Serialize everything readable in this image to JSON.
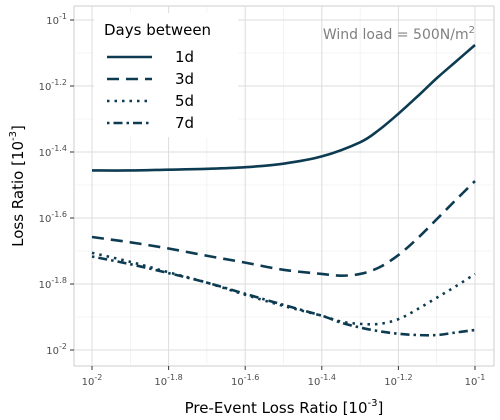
{
  "chart_data": {
    "type": "line",
    "xlabel_main": "Pre-Event Loss Ratio [10",
    "xlabel_sup": "-3",
    "xlabel_close": "]",
    "ylabel_main": "Loss Ratio [10",
    "ylabel_sup": "-3",
    "ylabel_close": "]",
    "x_scale": "log10",
    "y_scale": "log10",
    "xlim": [
      0.01,
      0.1
    ],
    "ylim": [
      0.01,
      0.1
    ],
    "grid": true,
    "x_ticks": [
      {
        "value": 0.01,
        "base": "10",
        "exp": "-2"
      },
      {
        "value": 0.015849,
        "base": "10",
        "exp": "-1.8"
      },
      {
        "value": 0.025119,
        "base": "10",
        "exp": "-1.6"
      },
      {
        "value": 0.039811,
        "base": "10",
        "exp": "-1.4"
      },
      {
        "value": 0.063096,
        "base": "10",
        "exp": "-1.2"
      },
      {
        "value": 0.1,
        "base": "10",
        "exp": "-1"
      }
    ],
    "y_ticks": [
      {
        "value": 0.01,
        "base": "10",
        "exp": "-2"
      },
      {
        "value": 0.015849,
        "base": "10",
        "exp": "-1.8"
      },
      {
        "value": 0.025119,
        "base": "10",
        "exp": "-1.6"
      },
      {
        "value": 0.039811,
        "base": "10",
        "exp": "-1.4"
      },
      {
        "value": 0.063096,
        "base": "10",
        "exp": "-1.2"
      },
      {
        "value": 0.1,
        "base": "10",
        "exp": "-1"
      }
    ],
    "legend": {
      "title": "Days between",
      "position": "top-left"
    },
    "annotation": {
      "main": "Wind load = 500N/m",
      "sup": "2",
      "position": "top-right"
    },
    "line_color": "#0d3b52",
    "series": [
      {
        "name": "1d",
        "dash": "solid",
        "x": [
          0.01,
          0.01259,
          0.01585,
          0.01995,
          0.02512,
          0.03162,
          0.03981,
          0.05012,
          0.05623,
          0.0631,
          0.07079,
          0.07943,
          0.08913,
          0.1
        ],
        "y": [
          0.035,
          0.035,
          0.0352,
          0.0354,
          0.0358,
          0.0367,
          0.0386,
          0.0426,
          0.0465,
          0.052,
          0.0587,
          0.0666,
          0.0748,
          0.084
        ]
      },
      {
        "name": "3d",
        "dash": "dashed",
        "x": [
          0.01,
          0.01259,
          0.01585,
          0.01995,
          0.02512,
          0.03162,
          0.03981,
          0.04467,
          0.05012,
          0.05623,
          0.0631,
          0.07079,
          0.07943,
          0.08913,
          0.1
        ],
        "y": [
          0.022,
          0.0212,
          0.0203,
          0.0193,
          0.0184,
          0.0175,
          0.017,
          0.0168,
          0.017,
          0.0178,
          0.0194,
          0.0218,
          0.0249,
          0.0285,
          0.0325
        ]
      },
      {
        "name": "5d",
        "dash": "dotted",
        "x": [
          0.01,
          0.01259,
          0.01585,
          0.01995,
          0.02512,
          0.03162,
          0.03981,
          0.04467,
          0.05012,
          0.05623,
          0.0631,
          0.07079,
          0.07943,
          0.08913,
          0.1
        ],
        "y": [
          0.0197,
          0.0185,
          0.0172,
          0.016,
          0.0147,
          0.0136,
          0.0127,
          0.0122,
          0.012,
          0.012,
          0.0124,
          0.0133,
          0.0144,
          0.0156,
          0.017
        ]
      },
      {
        "name": "7d",
        "dash": "dashdot",
        "x": [
          0.01,
          0.01259,
          0.01585,
          0.01995,
          0.02512,
          0.03162,
          0.03981,
          0.04467,
          0.05012,
          0.05623,
          0.0631,
          0.07079,
          0.07943,
          0.08913,
          0.1
        ],
        "y": [
          0.0192,
          0.0182,
          0.0171,
          0.016,
          0.0148,
          0.0137,
          0.0127,
          0.0121,
          0.0117,
          0.0114,
          0.0112,
          0.0111,
          0.0111,
          0.0113,
          0.0115
        ]
      }
    ]
  }
}
